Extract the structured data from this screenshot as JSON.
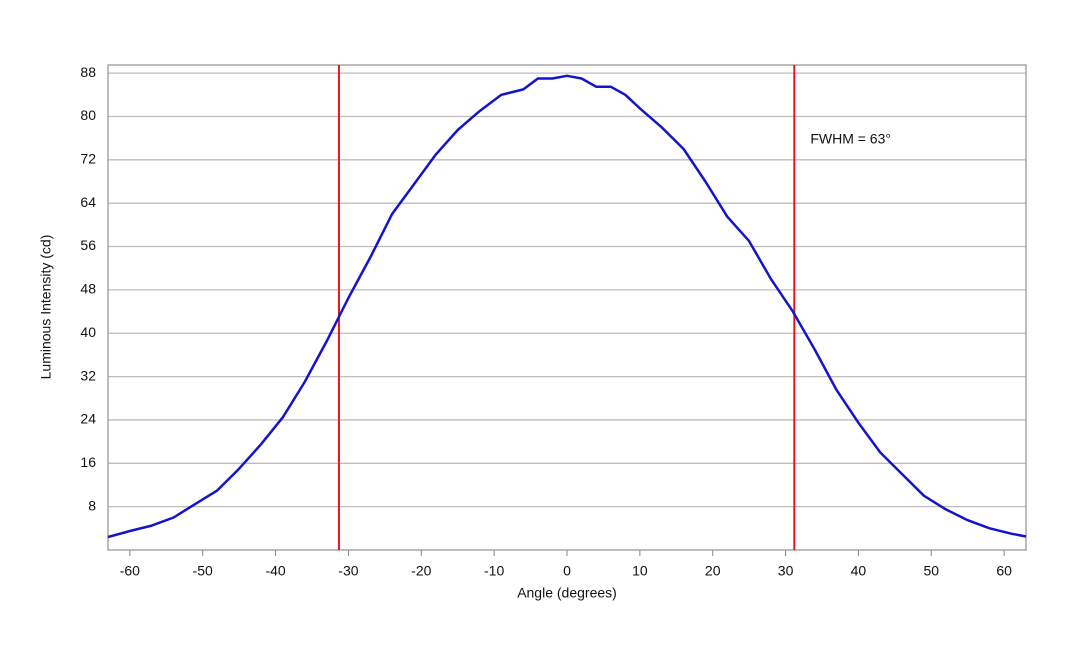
{
  "chart_data": {
    "type": "line",
    "x_label": "Angle (degrees)",
    "y_label": "Luminous Intensity (cd)",
    "annotation": "FWHM = 63°",
    "xlim": [
      -63,
      63
    ],
    "ylim": [
      0,
      89.5
    ],
    "xticks": [
      -60,
      -50,
      -40,
      -30,
      -20,
      -10,
      0,
      10,
      20,
      30,
      40,
      50,
      60
    ],
    "yticks": [
      8,
      16,
      24,
      32,
      40,
      48,
      56,
      64,
      72,
      80,
      88
    ],
    "grid": true,
    "vlines": [
      -31.3,
      31.2
    ],
    "vline_color": "#e8161b",
    "x": [
      -63,
      -60,
      -57,
      -54,
      -51,
      -48,
      -45,
      -42,
      -39,
      -36,
      -33,
      -30,
      -27,
      -24,
      -21,
      -18,
      -15,
      -12,
      -9,
      -6,
      -4,
      -2,
      0,
      2,
      4,
      6,
      8,
      10,
      13,
      16,
      19,
      22,
      25,
      28,
      31,
      34,
      37,
      40,
      43,
      46,
      49,
      52,
      55,
      58,
      61,
      63
    ],
    "series": [
      {
        "name": "Luminous Intensity",
        "color": "#1414cc",
        "values": [
          2.4,
          3.5,
          4.5,
          6,
          8.5,
          11,
          15,
          19.5,
          24.5,
          31,
          38.5,
          46.5,
          54,
          62,
          67.5,
          73,
          77.5,
          81,
          84,
          85,
          87,
          87,
          87.5,
          87,
          85.5,
          85.5,
          84,
          81.5,
          78,
          74,
          68,
          61.5,
          57,
          50,
          44,
          37,
          29.5,
          23.5,
          18,
          14,
          10,
          7.5,
          5.5,
          4,
          3,
          2.5
        ]
      }
    ]
  }
}
